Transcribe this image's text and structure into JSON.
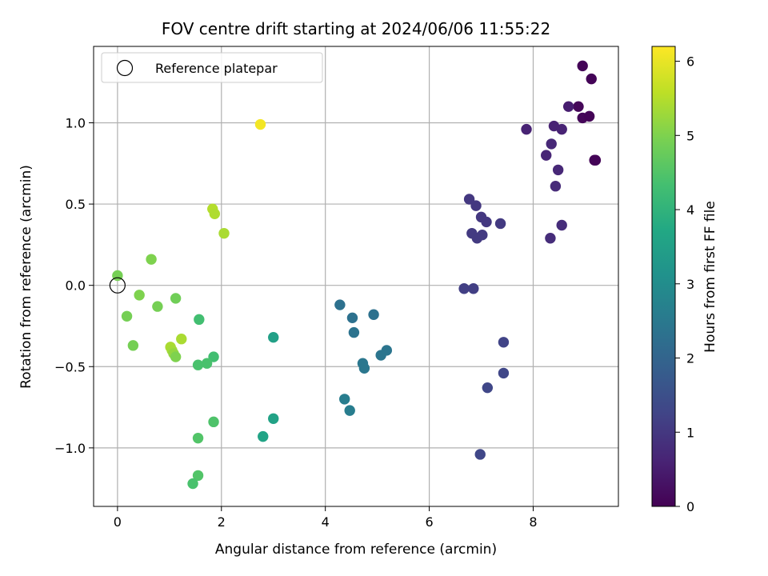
{
  "chart_data": {
    "type": "scatter",
    "title": "FOV centre drift starting at 2024/06/06 11:55:22",
    "xlabel": "Angular distance from reference (arcmin)",
    "ylabel": "Rotation from reference (arcmin)",
    "xlim": [
      -0.46,
      9.64
    ],
    "ylim": [
      -1.36,
      1.47
    ],
    "xticks": [
      0,
      2,
      4,
      6,
      8
    ],
    "xtick_labels": [
      "0",
      "2",
      "4",
      "6",
      "8"
    ],
    "yticks": [
      -1.0,
      -0.5,
      0.0,
      0.5,
      1.0
    ],
    "ytick_labels": [
      "−1.0",
      "−0.5",
      "0.0",
      "0.5",
      "1.0"
    ],
    "grid": true,
    "legend": {
      "position": "top-left",
      "entries": [
        {
          "label": "Reference platepar",
          "marker": "open-circle"
        }
      ]
    },
    "reference_point": {
      "x": 0,
      "y": 0
    },
    "colorbar": {
      "label": "Hours from first FF file",
      "colormap": "viridis",
      "range": [
        0,
        6.2
      ],
      "ticks": [
        0,
        1,
        2,
        3,
        4,
        5,
        6
      ],
      "tick_labels": [
        "0",
        "1",
        "2",
        "3",
        "4",
        "5",
        "6"
      ]
    },
    "points": [
      {
        "x": 8.95,
        "y": 1.35,
        "t": 0.05
      },
      {
        "x": 9.12,
        "y": 1.27,
        "t": 0.05
      },
      {
        "x": 8.87,
        "y": 1.1,
        "t": 0.1
      },
      {
        "x": 8.95,
        "y": 1.03,
        "t": 0.1
      },
      {
        "x": 9.08,
        "y": 1.04,
        "t": 0.05
      },
      {
        "x": 9.18,
        "y": 0.77,
        "t": 0.05
      },
      {
        "x": 9.2,
        "y": 0.77,
        "t": 0.05
      },
      {
        "x": 8.68,
        "y": 1.1,
        "t": 0.5
      },
      {
        "x": 8.4,
        "y": 0.98,
        "t": 0.6
      },
      {
        "x": 8.55,
        "y": 0.96,
        "t": 0.6
      },
      {
        "x": 7.87,
        "y": 0.96,
        "t": 0.6
      },
      {
        "x": 8.35,
        "y": 0.87,
        "t": 0.7
      },
      {
        "x": 8.25,
        "y": 0.8,
        "t": 0.65
      },
      {
        "x": 8.48,
        "y": 0.71,
        "t": 0.7
      },
      {
        "x": 8.43,
        "y": 0.61,
        "t": 0.75
      },
      {
        "x": 8.55,
        "y": 0.37,
        "t": 0.8
      },
      {
        "x": 8.33,
        "y": 0.29,
        "t": 0.8
      },
      {
        "x": 6.77,
        "y": 0.53,
        "t": 1.0
      },
      {
        "x": 6.9,
        "y": 0.49,
        "t": 1.0
      },
      {
        "x": 7.0,
        "y": 0.42,
        "t": 1.0
      },
      {
        "x": 7.1,
        "y": 0.39,
        "t": 1.0
      },
      {
        "x": 7.37,
        "y": 0.38,
        "t": 1.05
      },
      {
        "x": 6.82,
        "y": 0.32,
        "t": 1.05
      },
      {
        "x": 6.92,
        "y": 0.29,
        "t": 1.05
      },
      {
        "x": 7.02,
        "y": 0.31,
        "t": 1.05
      },
      {
        "x": 6.67,
        "y": -0.02,
        "t": 1.15
      },
      {
        "x": 6.85,
        "y": -0.02,
        "t": 1.15
      },
      {
        "x": 7.43,
        "y": -0.35,
        "t": 1.25
      },
      {
        "x": 7.43,
        "y": -0.54,
        "t": 1.3
      },
      {
        "x": 7.12,
        "y": -0.63,
        "t": 1.3
      },
      {
        "x": 6.98,
        "y": -1.04,
        "t": 1.3
      },
      {
        "x": 4.28,
        "y": -0.12,
        "t": 2.3
      },
      {
        "x": 4.52,
        "y": -0.2,
        "t": 2.3
      },
      {
        "x": 4.93,
        "y": -0.18,
        "t": 2.3
      },
      {
        "x": 4.55,
        "y": -0.29,
        "t": 2.35
      },
      {
        "x": 5.18,
        "y": -0.4,
        "t": 2.4
      },
      {
        "x": 5.07,
        "y": -0.43,
        "t": 2.4
      },
      {
        "x": 4.72,
        "y": -0.48,
        "t": 2.45
      },
      {
        "x": 4.75,
        "y": -0.51,
        "t": 2.45
      },
      {
        "x": 4.37,
        "y": -0.7,
        "t": 2.6
      },
      {
        "x": 4.47,
        "y": -0.77,
        "t": 2.6
      },
      {
        "x": 3.0,
        "y": -0.32,
        "t": 3.5
      },
      {
        "x": 3.0,
        "y": -0.82,
        "t": 3.55
      },
      {
        "x": 2.8,
        "y": -0.93,
        "t": 3.6
      },
      {
        "x": 1.57,
        "y": -0.21,
        "t": 4.3
      },
      {
        "x": 1.85,
        "y": -0.44,
        "t": 4.3
      },
      {
        "x": 1.72,
        "y": -0.48,
        "t": 4.4
      },
      {
        "x": 1.55,
        "y": -0.49,
        "t": 4.4
      },
      {
        "x": 1.85,
        "y": -0.84,
        "t": 4.45
      },
      {
        "x": 1.55,
        "y": -0.94,
        "t": 4.5
      },
      {
        "x": 1.55,
        "y": -1.17,
        "t": 4.5
      },
      {
        "x": 1.45,
        "y": -1.22,
        "t": 4.4
      },
      {
        "x": 0.0,
        "y": 0.06,
        "t": 4.9
      },
      {
        "x": 0.65,
        "y": 0.16,
        "t": 5.0
      },
      {
        "x": 0.42,
        "y": -0.06,
        "t": 5.0
      },
      {
        "x": 1.12,
        "y": -0.08,
        "t": 4.85
      },
      {
        "x": 0.77,
        "y": -0.13,
        "t": 4.9
      },
      {
        "x": 0.18,
        "y": -0.19,
        "t": 4.9
      },
      {
        "x": 0.3,
        "y": -0.37,
        "t": 4.9
      },
      {
        "x": 1.23,
        "y": -0.33,
        "t": 5.4
      },
      {
        "x": 1.02,
        "y": -0.38,
        "t": 5.4
      },
      {
        "x": 1.05,
        "y": -0.4,
        "t": 5.35
      },
      {
        "x": 1.08,
        "y": -0.42,
        "t": 5.2
      },
      {
        "x": 1.12,
        "y": -0.44,
        "t": 5.0
      },
      {
        "x": 1.83,
        "y": 0.47,
        "t": 5.5
      },
      {
        "x": 1.87,
        "y": 0.44,
        "t": 5.45
      },
      {
        "x": 2.05,
        "y": 0.32,
        "t": 5.4
      },
      {
        "x": 2.75,
        "y": 0.99,
        "t": 6.1
      }
    ]
  }
}
